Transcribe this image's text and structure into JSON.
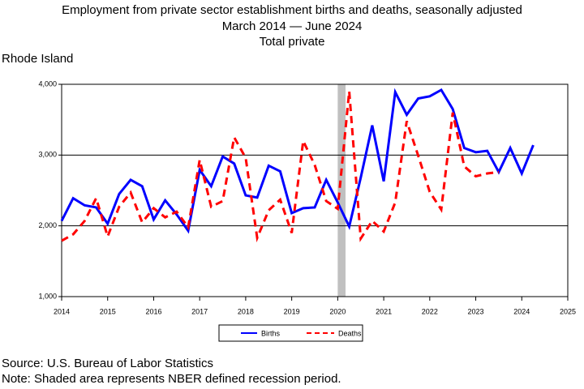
{
  "chart_data": {
    "type": "line",
    "title": "Employment from private sector establishment births and deaths, seasonally adjusted",
    "subtitle": "March 2014 — June 2024",
    "subtitle2": "Total private",
    "region": "Rhode Island",
    "source": "Source: U.S. Bureau of Labor Statistics",
    "note": "Note: Shaded area represents NBER defined recession period.",
    "x": [
      2014,
      2014.25,
      2014.5,
      2014.75,
      2015,
      2015.25,
      2015.5,
      2015.75,
      2016,
      2016.25,
      2016.5,
      2016.75,
      2017,
      2017.25,
      2017.5,
      2017.75,
      2018,
      2018.25,
      2018.5,
      2018.75,
      2019,
      2019.25,
      2019.5,
      2019.75,
      2020,
      2020.25,
      2020.5,
      2020.75,
      2021,
      2021.25,
      2021.5,
      2021.75,
      2022,
      2022.25,
      2022.5,
      2022.75,
      2023,
      2023.25,
      2023.5,
      2023.75,
      2024,
      2024.25
    ],
    "series": [
      {
        "name": "Births",
        "color": "#0000ff",
        "dash": false,
        "values": [
          2070,
          2390,
          2290,
          2260,
          2030,
          2450,
          2650,
          2560,
          2090,
          2360,
          2160,
          1930,
          2790,
          2560,
          2980,
          2880,
          2430,
          2400,
          2850,
          2770,
          2180,
          2250,
          2260,
          2650,
          2330,
          1990,
          2680,
          3420,
          2630,
          3890,
          3570,
          3800,
          3830,
          3920,
          3650,
          3100,
          3040,
          3060,
          2760,
          3100,
          2740,
          3140
        ]
      },
      {
        "name": "Deaths",
        "color": "#ff0000",
        "dash": true,
        "values": [
          1790,
          1880,
          2070,
          2390,
          1850,
          2270,
          2470,
          2050,
          2250,
          2120,
          2200,
          1980,
          2930,
          2270,
          2350,
          3250,
          2960,
          1830,
          2220,
          2370,
          1900,
          3200,
          2860,
          2350,
          2240,
          3900,
          1820,
          2070,
          1920,
          2330,
          3480,
          2990,
          2480,
          2230,
          3600,
          2840,
          2700,
          2740,
          2760,
          null,
          null,
          null
        ]
      }
    ],
    "recession": [
      2020,
      2020.17
    ],
    "xlim": [
      2014,
      2025
    ],
    "xticks": [
      2014,
      2015,
      2016,
      2017,
      2018,
      2019,
      2020,
      2021,
      2022,
      2023,
      2024,
      2025
    ],
    "ylim": [
      1000,
      4000
    ],
    "yticks": [
      {
        "value": 1000,
        "label": "1,000"
      },
      {
        "value": 2000,
        "label": "2,000"
      },
      {
        "value": 3000,
        "label": "3,000"
      },
      {
        "value": 4000,
        "label": "4,000"
      }
    ],
    "grid": true
  }
}
